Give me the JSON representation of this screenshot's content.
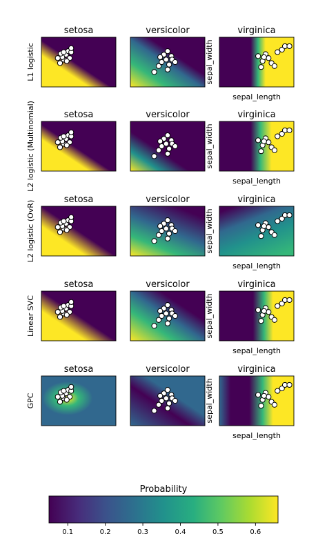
{
  "chart_data": {
    "type": "heatmap",
    "classes": [
      "setosa",
      "versicolor",
      "virginica"
    ],
    "classifiers": [
      "L1 logistic",
      "L2 logistic (Multinomial)",
      "L2 logistic (OvR)",
      "Linear SVC",
      "GPC"
    ],
    "xlabel": "sepal_length",
    "ylabel": "sepal_width",
    "colorbar": {
      "title": "Probability",
      "ticks": [
        "0.1",
        "0.2",
        "0.3",
        "0.4",
        "0.5",
        "0.6"
      ],
      "range": [
        0.05,
        0.66
      ],
      "colormap": "viridis"
    },
    "grid": false
  }
}
